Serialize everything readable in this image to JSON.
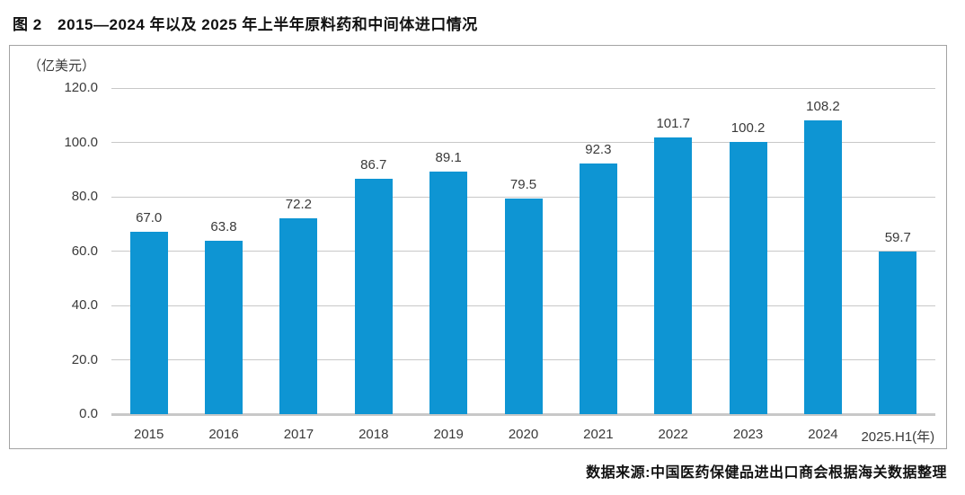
{
  "figure": {
    "title": "图 2　2015—2024 年以及 2025 年上半年原料药和中间体进口情况",
    "source": "数据来源:中国医药保健品进出口商会根据海关数据整理"
  },
  "chart_data": {
    "type": "bar",
    "title": "2015—2024 年以及 2025 年上半年原料药和中间体进口情况",
    "unit_label": "（亿美元）",
    "categories": [
      "2015",
      "2016",
      "2017",
      "2018",
      "2019",
      "2020",
      "2021",
      "2022",
      "2023",
      "2024",
      "2025.H1(年)"
    ],
    "values": [
      67.0,
      63.8,
      72.2,
      86.7,
      89.1,
      79.5,
      92.3,
      101.7,
      100.2,
      108.2,
      59.7
    ],
    "ylabel": "亿美元",
    "xlabel": "年",
    "ylim": [
      0,
      120
    ],
    "ytick_step": 20,
    "yticks": [
      "0.0",
      "20.0",
      "40.0",
      "60.0",
      "80.0",
      "100.0",
      "120.0"
    ],
    "grid": true,
    "legend_position": "none"
  },
  "colors": {
    "bar": "#0e95d3",
    "gridline": "#c8c8c8",
    "zero_line": "#c8c8c8",
    "box_border": "#a3a3a3",
    "label_text": "#3a3a3a",
    "title_text": "#111111"
  }
}
